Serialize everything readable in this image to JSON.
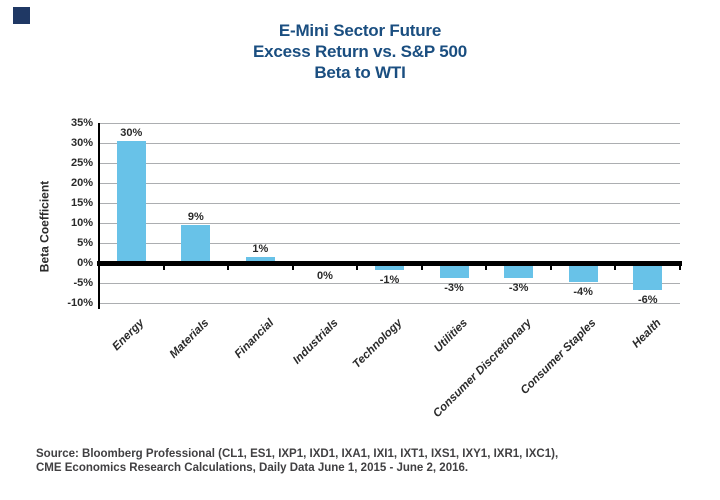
{
  "brand": {
    "logo_color": "#1F3864"
  },
  "chart_data": {
    "type": "bar",
    "title": "E-Mini Sector Future Excess Return vs. S&P 500 Beta to WTI",
    "title_lines": [
      "E-Mini Sector Future",
      "Excess Return vs. S&P 500",
      "Beta to WTI"
    ],
    "ylabel": "Beta Coefficient",
    "xlabel": "",
    "categories": [
      "Energy",
      "Materials",
      "Financial",
      "Industrials",
      "Technology",
      "Utilities",
      "Consumer Discretionary",
      "Consumer Staples",
      "Health"
    ],
    "values": [
      30,
      9,
      1,
      0,
      -1,
      -3,
      -3,
      -4,
      -6
    ],
    "value_labels": [
      "30%",
      "9%",
      "1%",
      "0%",
      "-1%",
      "-3%",
      "-3%",
      "-4%",
      "-6%"
    ],
    "unit": "%",
    "yticks": [
      35,
      30,
      25,
      20,
      15,
      10,
      5,
      0,
      -5,
      -10
    ],
    "ytick_labels": [
      "35%",
      "30%",
      "25%",
      "20%",
      "15%",
      "10%",
      "5%",
      "0%",
      "-5%",
      "-10%"
    ],
    "ylim": [
      -10,
      35
    ],
    "grid": true,
    "legend": false,
    "colors": {
      "bar": "#68C2E8",
      "grid": "#ACAEB1",
      "axis": "#000000",
      "title": "#1A4E80",
      "text": "#2A2A2A",
      "source": "#414042"
    },
    "source_lines": [
      "Source: Bloomberg Professional (CL1, ES1, IXP1, IXD1, IXA1, IXI1, IXT1, IXS1, IXY1, IXR1, IXC1),",
      "CME Economics Research Calculations, Daily Data June 1, 2015 - June 2, 2016."
    ]
  }
}
